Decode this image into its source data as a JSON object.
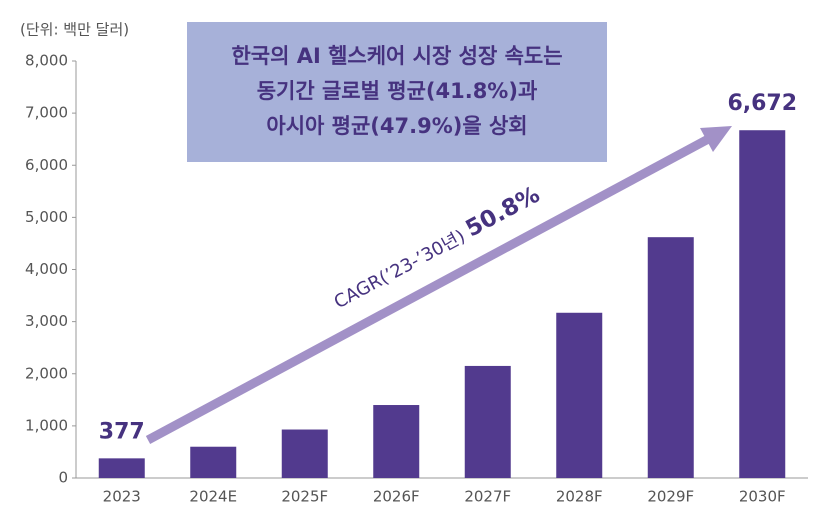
{
  "chart_data": {
    "type": "bar",
    "unit_label": "(단위: 백만 달러)",
    "categories": [
      "2023",
      "2024E",
      "2025F",
      "2026F",
      "2027F",
      "2028F",
      "2029F",
      "2030F"
    ],
    "values": [
      377,
      600,
      930,
      1400,
      2150,
      3170,
      4620,
      6672
    ],
    "value_labels": [
      "377",
      null,
      null,
      null,
      null,
      null,
      null,
      "6,672"
    ],
    "color": "#523a8e",
    "ylim": [
      0,
      8000
    ],
    "yticks": [
      0,
      {
        "value": 1000,
        "label": "1,000"
      },
      {
        "value": 2000,
        "label": "2,000"
      },
      {
        "value": 3000,
        "label": "3,000"
      },
      {
        "value": 4000,
        "label": "4,000"
      },
      {
        "value": 5000,
        "label": "5,000"
      },
      {
        "value": 6000,
        "label": "6,000"
      },
      {
        "value": 7000,
        "label": "7,000"
      },
      {
        "value": 8000,
        "label": "8,000"
      }
    ],
    "grid": false,
    "callout": [
      "한국의 AI 헬스케어 시장 성장 속도는",
      "동기간 글로벌 평균(41.8%)과",
      "아시아 평균(47.9%)을 상회"
    ],
    "cagr_label": "CAGR(’23-’30년)",
    "cagr_value": "50.8%"
  }
}
